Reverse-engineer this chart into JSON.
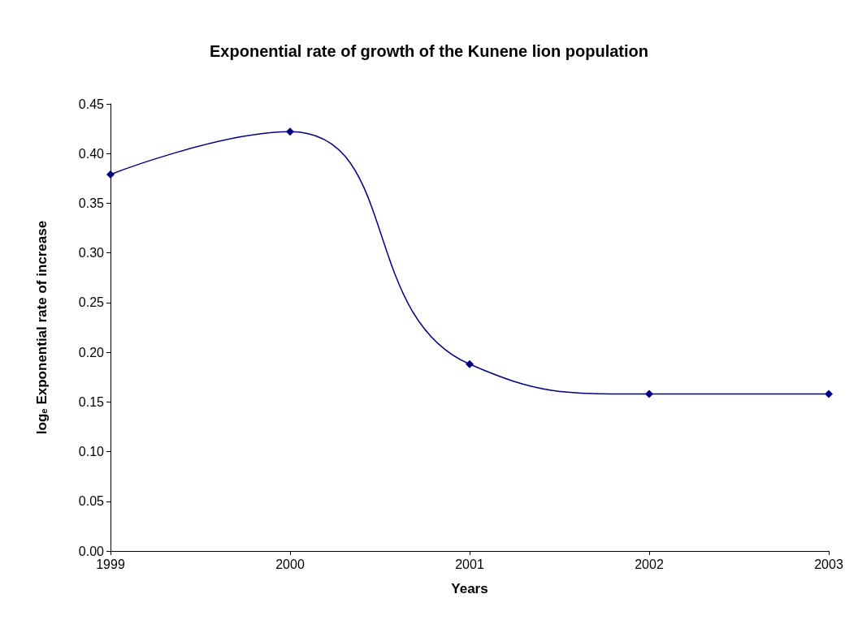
{
  "chart_data": {
    "type": "line",
    "title": "Exponential rate of growth of the Kunene lion population",
    "xlabel": "Years",
    "ylabel": "logₑ Exponential rate of increase",
    "x": [
      1999,
      2000,
      2001,
      2002,
      2003
    ],
    "series": [
      {
        "color": "#000080",
        "values": [
          0.379,
          0.422,
          0.188,
          0.158,
          0.158
        ]
      }
    ],
    "xlim": [
      1999,
      2003
    ],
    "xticks": [
      1999,
      2000,
      2001,
      2002,
      2003
    ],
    "ylim": [
      0,
      0.45
    ],
    "yticks": [
      {
        "value": 0,
        "label": "0.00"
      },
      {
        "value": 0.05,
        "label": "0.05"
      },
      {
        "value": 0.1,
        "label": "0.10"
      },
      {
        "value": 0.15,
        "label": "0.15"
      },
      {
        "value": 0.2,
        "label": "0.20"
      },
      {
        "value": 0.25,
        "label": "0.25"
      },
      {
        "value": 0.3,
        "label": "0.30"
      },
      {
        "value": 0.35,
        "label": "0.35"
      },
      {
        "value": 0.4,
        "label": "0.40"
      },
      {
        "value": 0.45,
        "label": "0.45"
      }
    ],
    "grid": false,
    "marker": "diamond",
    "line_style": "solid"
  }
}
